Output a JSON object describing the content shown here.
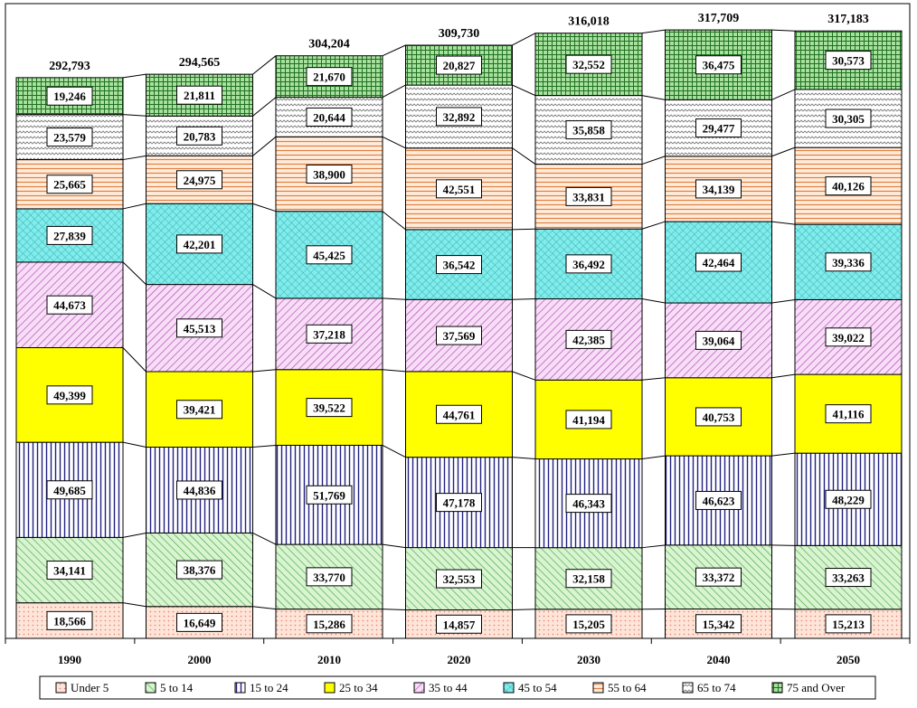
{
  "chart_data": {
    "type": "bar",
    "stacked": true,
    "categories": [
      "1990",
      "2000",
      "2010",
      "2020",
      "2030",
      "2040",
      "2050"
    ],
    "totals": [
      "292,793",
      "294,565",
      "304,204",
      "309,730",
      "316,018",
      "317,709",
      "317,183"
    ],
    "series": [
      {
        "name": "Under 5",
        "values": [
          18566,
          16649,
          15286,
          14857,
          15205,
          15342,
          15213
        ],
        "labels": [
          "18,566",
          "16,649",
          "15,286",
          "14,857",
          "15,205",
          "15,342",
          "15,213"
        ],
        "color": "#ffe0d0",
        "pattern": "dots"
      },
      {
        "name": "5 to 14",
        "values": [
          34141,
          38376,
          33770,
          32553,
          32158,
          33372,
          33263
        ],
        "labels": [
          "34,141",
          "38,376",
          "33,770",
          "32,553",
          "32,158",
          "33,372",
          "33,263"
        ],
        "color": "#c8f0c8",
        "pattern": "diag"
      },
      {
        "name": "15 to 24",
        "values": [
          49685,
          44836,
          51769,
          47178,
          46343,
          46623,
          48229
        ],
        "labels": [
          "49,685",
          "44,836",
          "51,769",
          "47,178",
          "46,343",
          "46,623",
          "48,229"
        ],
        "color": "#ffffff",
        "pattern": "vlines"
      },
      {
        "name": "25 to 34",
        "values": [
          49399,
          39421,
          39522,
          44761,
          41194,
          40753,
          41116
        ],
        "labels": [
          "49,399",
          "39,421",
          "39,522",
          "44,761",
          "41,194",
          "40,753",
          "41,116"
        ],
        "color": "#ffff00",
        "pattern": "solid"
      },
      {
        "name": "35 to 44",
        "values": [
          44673,
          45513,
          37218,
          37569,
          42385,
          39064,
          39022
        ],
        "labels": [
          "44,673",
          "45,513",
          "37,218",
          "37,569",
          "42,385",
          "39,064",
          "39,022"
        ],
        "color": "#f4d0f4",
        "pattern": "diag2"
      },
      {
        "name": "45 to 54",
        "values": [
          27839,
          42201,
          45425,
          36542,
          36492,
          42464,
          39336
        ],
        "labels": [
          "27,839",
          "42,201",
          "45,425",
          "36,542",
          "36,492",
          "42,464",
          "39,336"
        ],
        "color": "#80f0f0",
        "pattern": "cross"
      },
      {
        "name": "55 to 64",
        "values": [
          25665,
          24975,
          38900,
          42551,
          33831,
          34139,
          40126
        ],
        "labels": [
          "25,665",
          "24,975",
          "38,900",
          "42,551",
          "33,831",
          "34,139",
          "40,126"
        ],
        "color": "#ffe8d0",
        "pattern": "hlines"
      },
      {
        "name": "65 to 74",
        "values": [
          23579,
          20783,
          20644,
          32892,
          35858,
          29477,
          30305
        ],
        "labels": [
          "23,579",
          "20,783",
          "20,644",
          "32,892",
          "35,858",
          "29,477",
          "30,305"
        ],
        "color": "#ffffff",
        "pattern": "wave"
      },
      {
        "name": "75 and Over",
        "values": [
          19246,
          21811,
          21670,
          20827,
          32552,
          36475,
          30573
        ],
        "labels": [
          "19,246",
          "21,811",
          "21,670",
          "20,827",
          "32,552",
          "36,475",
          "30,573"
        ],
        "color": "#a0e0a0",
        "pattern": "grid"
      }
    ],
    "ylim": [
      0,
      320000
    ],
    "legend_position": "bottom",
    "grid": false,
    "connector_lines": true
  }
}
